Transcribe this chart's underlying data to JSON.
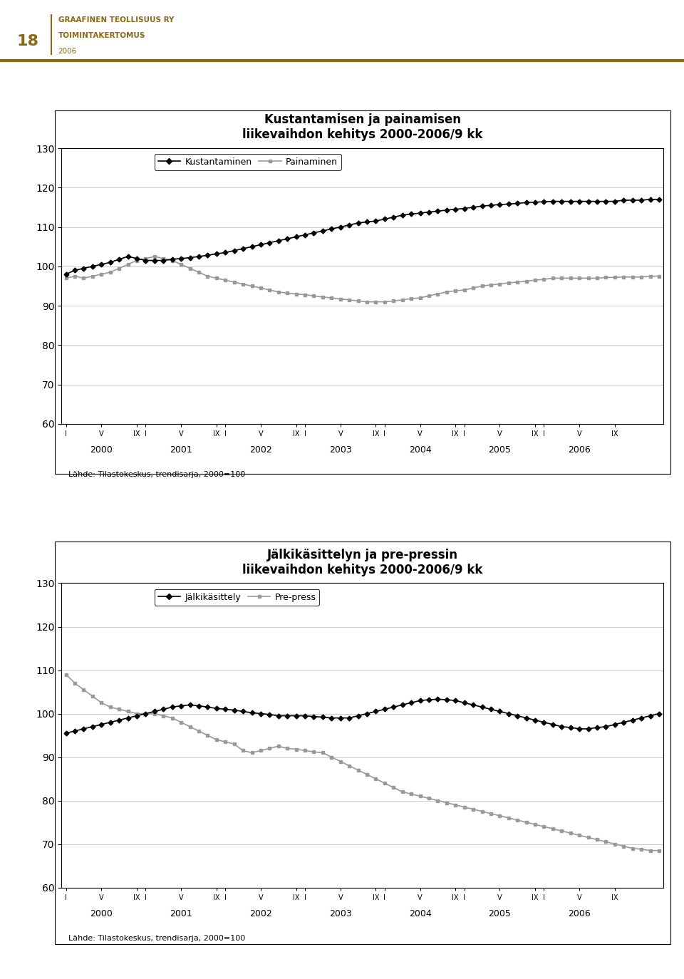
{
  "page_number": "18",
  "header_line1": "GRAAFINEN TEOLLISUUS RY",
  "header_line2": "TOIMINTAKERTOMUS",
  "header_line3": "2006",
  "header_color": "#8B6914",
  "chart1": {
    "title_line1": "Kustantamisen ja painamisen",
    "title_line2": "liikevaihdon kehitys 2000-2006/9 kk",
    "legend_entries": [
      "Kustantaminen",
      "Painaminen"
    ],
    "source_text": "Lähde: Tilastokeskus, trendisarja, 2000=100",
    "ylim": [
      60,
      130
    ],
    "yticks": [
      60,
      70,
      80,
      90,
      100,
      110,
      120,
      130
    ],
    "kustantaminen": [
      98.0,
      99.0,
      99.5,
      100.0,
      100.5,
      101.0,
      101.8,
      102.5,
      102.0,
      101.5,
      101.5,
      101.5,
      101.8,
      102.0,
      102.2,
      102.5,
      102.8,
      103.2,
      103.5,
      104.0,
      104.5,
      105.0,
      105.5,
      106.0,
      106.5,
      107.0,
      107.5,
      108.0,
      108.5,
      109.0,
      109.5,
      110.0,
      110.5,
      111.0,
      111.3,
      111.5,
      112.0,
      112.5,
      113.0,
      113.3,
      113.5,
      113.8,
      114.0,
      114.3,
      114.5,
      114.7,
      115.0,
      115.3,
      115.5,
      115.7,
      115.8,
      116.0,
      116.2,
      116.3,
      116.4,
      116.5,
      116.5,
      116.5,
      116.5,
      116.5,
      116.5,
      116.5,
      116.5,
      116.8,
      116.8,
      116.8,
      117.0,
      117.0
    ],
    "painaminen": [
      97.0,
      97.5,
      97.0,
      97.5,
      98.0,
      98.5,
      99.5,
      100.5,
      101.5,
      102.0,
      102.5,
      102.0,
      101.5,
      100.5,
      99.5,
      98.5,
      97.5,
      97.0,
      96.5,
      96.0,
      95.5,
      95.0,
      94.5,
      94.0,
      93.5,
      93.2,
      93.0,
      92.8,
      92.5,
      92.2,
      92.0,
      91.7,
      91.5,
      91.2,
      91.0,
      91.0,
      91.0,
      91.2,
      91.5,
      91.8,
      92.0,
      92.5,
      93.0,
      93.5,
      93.8,
      94.0,
      94.5,
      95.0,
      95.3,
      95.5,
      95.8,
      96.0,
      96.2,
      96.5,
      96.7,
      97.0,
      97.0,
      97.0,
      97.0,
      97.0,
      97.0,
      97.2,
      97.2,
      97.3,
      97.3,
      97.3,
      97.5,
      97.5
    ]
  },
  "chart2": {
    "title_line1": "Jälkikäsittelyn ja pre-pressin",
    "title_line2": "liikevaihdon kehitys 2000-2006/9 kk",
    "legend_entries": [
      "Jälkikäsittely",
      "Pre-press"
    ],
    "source_text": "Lähde: Tilastokeskus, trendisarja, 2000=100",
    "ylim": [
      60,
      130
    ],
    "yticks": [
      60,
      70,
      80,
      90,
      100,
      110,
      120,
      130
    ],
    "jalkikasittely": [
      95.5,
      96.0,
      96.5,
      97.0,
      97.5,
      98.0,
      98.5,
      99.0,
      99.5,
      100.0,
      100.5,
      101.0,
      101.5,
      101.8,
      102.0,
      101.8,
      101.5,
      101.2,
      101.0,
      100.8,
      100.5,
      100.2,
      100.0,
      99.8,
      99.5,
      99.5,
      99.5,
      99.5,
      99.3,
      99.2,
      99.0,
      99.0,
      99.0,
      99.5,
      100.0,
      100.5,
      101.0,
      101.5,
      102.0,
      102.5,
      103.0,
      103.2,
      103.3,
      103.2,
      103.0,
      102.5,
      102.0,
      101.5,
      101.0,
      100.5,
      100.0,
      99.5,
      99.0,
      98.5,
      98.0,
      97.5,
      97.0,
      96.8,
      96.5,
      96.5,
      96.8,
      97.0,
      97.5,
      98.0,
      98.5,
      99.0,
      99.5,
      100.0
    ],
    "prepress": [
      109.0,
      107.0,
      105.5,
      104.0,
      102.5,
      101.5,
      101.0,
      100.5,
      100.0,
      100.0,
      100.0,
      99.5,
      99.0,
      98.0,
      97.0,
      96.0,
      95.0,
      94.0,
      93.5,
      93.0,
      91.5,
      91.0,
      91.5,
      92.0,
      92.5,
      92.0,
      91.8,
      91.5,
      91.2,
      91.0,
      90.0,
      89.0,
      88.0,
      87.0,
      86.0,
      85.0,
      84.0,
      83.0,
      82.0,
      81.5,
      81.0,
      80.5,
      80.0,
      79.5,
      79.0,
      78.5,
      78.0,
      77.5,
      77.0,
      76.5,
      76.0,
      75.5,
      75.0,
      74.5,
      74.0,
      73.5,
      73.0,
      72.5,
      72.0,
      71.5,
      71.0,
      70.5,
      70.0,
      69.5,
      69.0,
      68.8,
      68.5,
      68.5
    ]
  },
  "year_labels": [
    "2000",
    "2001",
    "2002",
    "2003",
    "2004",
    "2005",
    "2006"
  ],
  "n_points": 68
}
